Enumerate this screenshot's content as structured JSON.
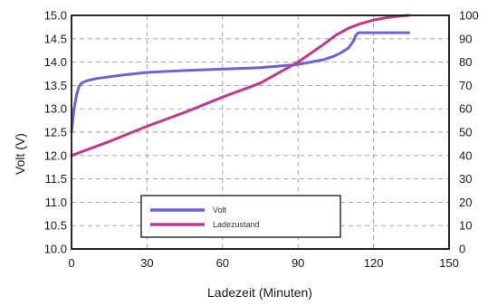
{
  "chart_data": {
    "type": "line",
    "title": "",
    "xlabel": "Ladezeit (Minuten)",
    "ylabel_left": "Volt (V)",
    "ylabel_right": "",
    "xlim": [
      0,
      150
    ],
    "ylim_left": [
      10.0,
      15.0
    ],
    "ylim_right": [
      0,
      100
    ],
    "x_ticks": [
      "0",
      "30",
      "60",
      "90",
      "120",
      "150"
    ],
    "y_left_ticks": [
      "10.0",
      "10.5",
      "11.0",
      "11.5",
      "12.0",
      "12.5",
      "13.0",
      "13.5",
      "14.0",
      "14.5",
      "15.0"
    ],
    "y_right_ticks": [
      "0",
      "10",
      "20",
      "30",
      "40",
      "50",
      "60",
      "70",
      "80",
      "90",
      "100"
    ],
    "grid": true,
    "legend_position": "lower-center",
    "series": [
      {
        "name": "Volt",
        "axis": "left",
        "color": "#6b63d6",
        "x": [
          0,
          0.5,
          1,
          2,
          3,
          4,
          6,
          10,
          20,
          30,
          45,
          60,
          75,
          90,
          95,
          100,
          104,
          107,
          110,
          112,
          113,
          114,
          115,
          120,
          130,
          134
        ],
        "y": [
          12.5,
          12.75,
          13.0,
          13.3,
          13.48,
          13.55,
          13.6,
          13.65,
          13.72,
          13.78,
          13.82,
          13.85,
          13.88,
          13.95,
          14.0,
          14.05,
          14.12,
          14.2,
          14.3,
          14.45,
          14.58,
          14.63,
          14.63,
          14.63,
          14.63,
          14.63
        ]
      },
      {
        "name": "Ladezustand",
        "axis": "right",
        "color": "#c2388c",
        "x": [
          0,
          15,
          30,
          45,
          60,
          75,
          90,
          100,
          105,
          110,
          115,
          120,
          125,
          130,
          134
        ],
        "y": [
          40,
          46,
          52.5,
          58.5,
          65,
          71,
          80,
          87.5,
          91.5,
          94.5,
          96.5,
          98,
          99,
          99.7,
          100
        ]
      }
    ]
  }
}
